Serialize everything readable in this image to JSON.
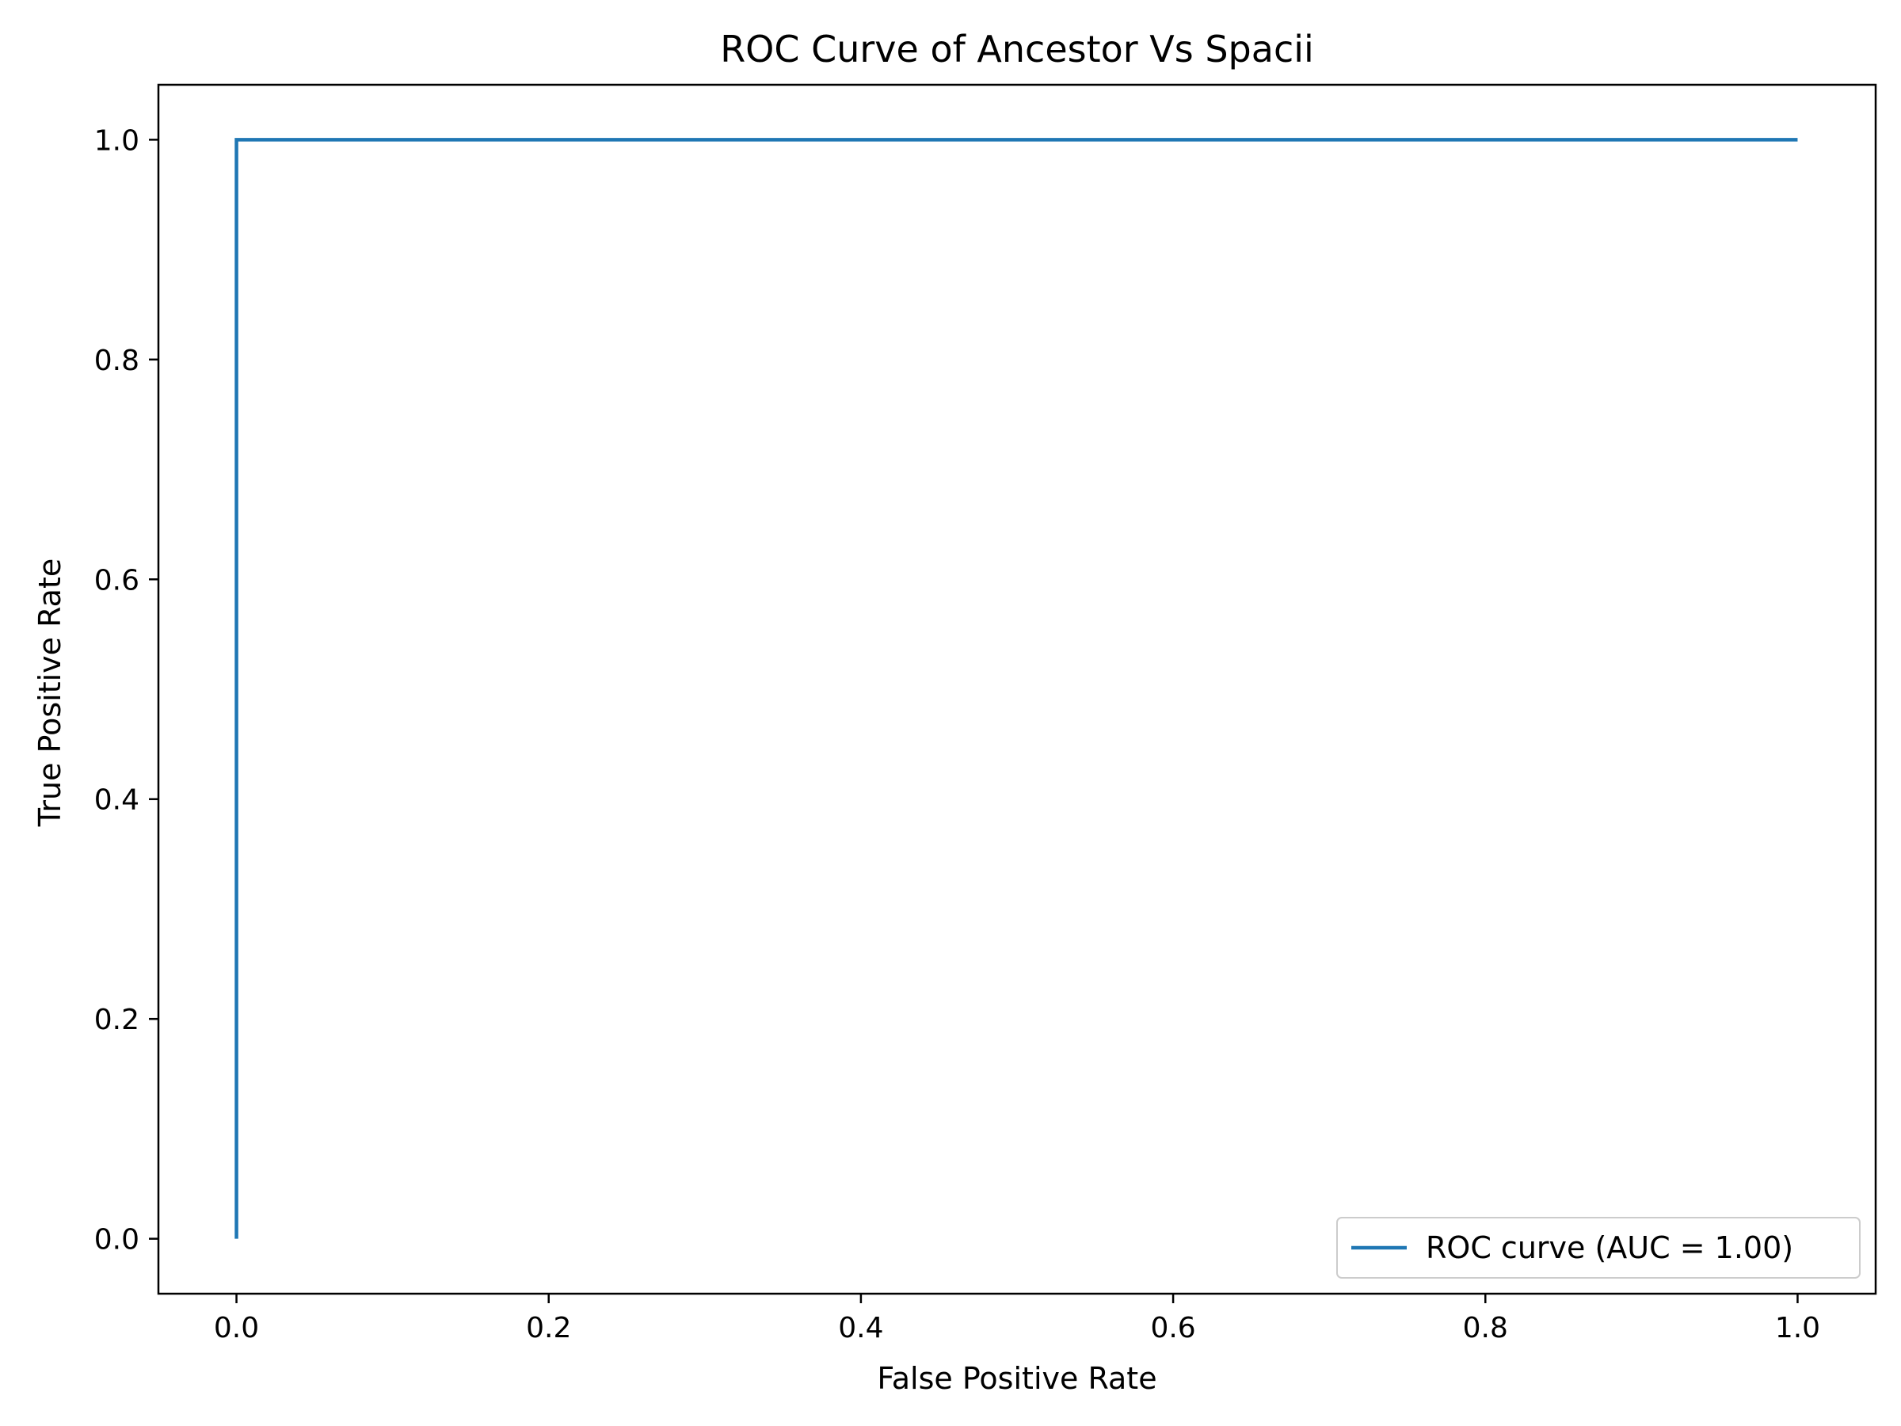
{
  "chart_data": {
    "type": "line",
    "title": "ROC Curve of Ancestor Vs Spacii",
    "xlabel": "False Positive Rate",
    "ylabel": "True Positive Rate",
    "xlim": [
      -0.05,
      1.05
    ],
    "ylim": [
      -0.05,
      1.05
    ],
    "xticks": [
      0.0,
      0.2,
      0.4,
      0.6,
      0.8,
      1.0
    ],
    "xtick_labels": [
      "0.0",
      "0.2",
      "0.4",
      "0.6",
      "0.8",
      "1.0"
    ],
    "yticks": [
      0.0,
      0.2,
      0.4,
      0.6,
      0.8,
      1.0
    ],
    "ytick_labels": [
      "0.0",
      "0.2",
      "0.4",
      "0.6",
      "0.8",
      "1.0"
    ],
    "grid": false,
    "legend_position": "lower right",
    "series": [
      {
        "name": "ROC curve (AUC = 1.00)",
        "color": "#1f77b4",
        "x": [
          0.0,
          0.0,
          1.0
        ],
        "y": [
          0.0,
          1.0,
          1.0
        ]
      }
    ]
  }
}
